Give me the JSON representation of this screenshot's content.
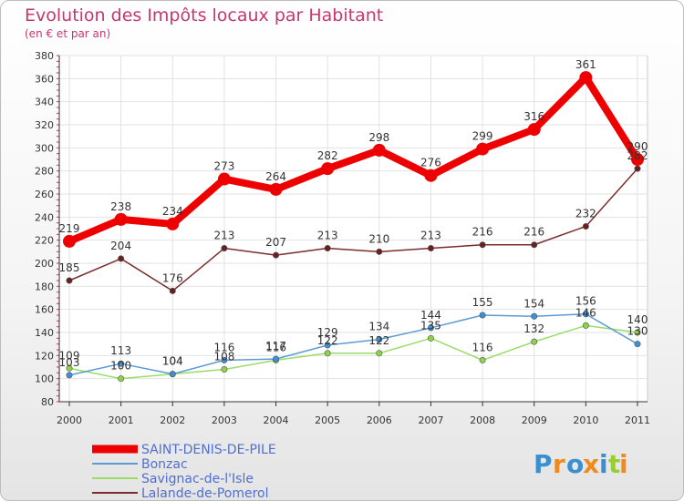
{
  "chart_data": {
    "type": "line",
    "title": "Evolution des Impôts locaux par Habitant",
    "subtitle": "(en € et par an)",
    "xlabel": "",
    "ylabel": "",
    "x": [
      "2000",
      "2001",
      "2002",
      "2003",
      "2004",
      "2005",
      "2006",
      "2007",
      "2008",
      "2009",
      "2010",
      "2011"
    ],
    "ylim": [
      80,
      380
    ],
    "yticks": [
      80,
      100,
      120,
      140,
      160,
      180,
      200,
      220,
      240,
      260,
      280,
      300,
      320,
      340,
      360,
      380
    ],
    "grid": true,
    "legend_position": "bottom-left",
    "series": [
      {
        "name": "SAINT-DENIS-DE-PILE",
        "color": "#ee0000",
        "values": [
          219,
          238,
          234,
          273,
          264,
          282,
          298,
          276,
          299,
          316,
          361,
          290
        ]
      },
      {
        "name": "Bonzac",
        "color": "#5b9bd5",
        "values": [
          103,
          113,
          104,
          116,
          117,
          129,
          134,
          144,
          155,
          154,
          156,
          130
        ]
      },
      {
        "name": "Savignac-de-l'Isle",
        "color": "#99dd66",
        "values": [
          109,
          100,
          104,
          108,
          116,
          122,
          122,
          135,
          116,
          132,
          146,
          140
        ]
      },
      {
        "name": "Lalande-de-Pomerol",
        "color": "#7b2d2d",
        "values": [
          185,
          204,
          176,
          213,
          207,
          213,
          210,
          213,
          216,
          216,
          232,
          282
        ]
      }
    ]
  },
  "logo": {
    "letters": [
      "P",
      "r",
      "o",
      "x",
      "i",
      "t",
      "i"
    ],
    "colors": [
      "#3a8fd0",
      "#f08a1e",
      "#3a8fd0",
      "#f08a1e",
      "#3a8fd0",
      "#9acd32",
      "#f08a1e"
    ]
  }
}
